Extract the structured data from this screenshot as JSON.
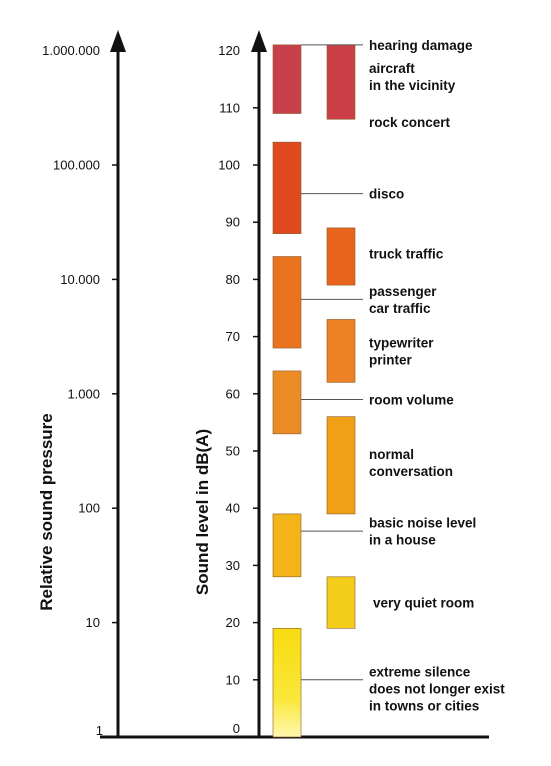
{
  "chart_data": {
    "type": "bar",
    "left_axis": {
      "title": "Relative sound pressure",
      "ticks": [
        {
          "label": "1",
          "db": 0
        },
        {
          "label": "10",
          "db": 20
        },
        {
          "label": "100",
          "db": 40
        },
        {
          "label": "1.000",
          "db": 60
        },
        {
          "label": "10.000",
          "db": 80
        },
        {
          "label": "100.000",
          "db": 100
        },
        {
          "label": "1.000.000",
          "db": 120
        }
      ]
    },
    "right_axis": {
      "title": "Sound level in dB(A)",
      "ticks": [
        "0",
        "10",
        "20",
        "30",
        "40",
        "50",
        "60",
        "70",
        "80",
        "90",
        "100",
        "110",
        "120"
      ],
      "ylim": [
        0,
        120
      ]
    },
    "sources": [
      {
        "lines": [
          "hearing damage"
        ],
        "column": 1,
        "range": [
          109,
          121
        ],
        "pointer_db": 121,
        "label_db": 121,
        "color": "#c8404a"
      },
      {
        "lines": [
          "aircraft",
          "in the vicinity"
        ],
        "column": 2,
        "range": [
          108,
          121
        ],
        "pointer_db": null,
        "label_db": 115.5,
        "color": "#cc3f46"
      },
      {
        "lines": [
          "rock concert"
        ],
        "column": 2,
        "range": null,
        "pointer_db": null,
        "label_db": 107.5,
        "color": "#cc3f46"
      },
      {
        "lines": [
          "disco"
        ],
        "column": 1,
        "range": [
          88,
          104
        ],
        "pointer_db": 95,
        "label_db": 95,
        "color": "#e04a1e"
      },
      {
        "lines": [
          "truck traffic"
        ],
        "column": 2,
        "range": [
          79,
          89
        ],
        "pointer_db": null,
        "label_db": 84.5,
        "color": "#e8641c"
      },
      {
        "lines": [
          "passenger",
          "car traffic"
        ],
        "column": 1,
        "range": [
          68,
          84
        ],
        "pointer_db": 76.5,
        "label_db": 76.5,
        "color": "#ea7320"
      },
      {
        "lines": [
          "typewriter",
          "printer"
        ],
        "column": 2,
        "range": [
          62,
          73
        ],
        "pointer_db": null,
        "label_db": 67.5,
        "color": "#ec8224"
      },
      {
        "lines": [
          "room volume"
        ],
        "column": 1,
        "range": [
          53,
          64
        ],
        "pointer_db": 59,
        "label_db": 59,
        "color": "#ec8c26"
      },
      {
        "lines": [
          "normal",
          "conversation"
        ],
        "column": 2,
        "range": [
          39,
          56
        ],
        "pointer_db": null,
        "label_db": 48,
        "color": "#f0a014"
      },
      {
        "lines": [
          "basic noise level",
          "in a house"
        ],
        "column": 1,
        "range": [
          28,
          39
        ],
        "pointer_db": 36,
        "label_db": 36,
        "color": "#f2b418"
      },
      {
        "lines": [
          "very quiet room"
        ],
        "column": 2,
        "range": [
          19,
          28
        ],
        "pointer_db": null,
        "label_db": 23.5,
        "color": "#f4cc1a"
      },
      {
        "lines": [
          "extreme silence",
          "does not longer exist",
          "in towns or cities"
        ],
        "column": 1,
        "range": [
          0,
          19
        ],
        "pointer_db": 10,
        "label_db": 8.5,
        "color": "#f8e020"
      }
    ]
  }
}
